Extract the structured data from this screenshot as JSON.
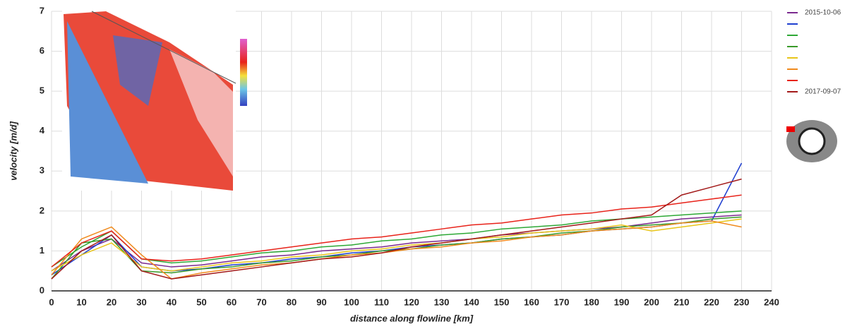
{
  "chart_data": {
    "type": "line",
    "x_label": "distance along flowline [km]",
    "y_label": "velocity [m/d]",
    "x": [
      0,
      10,
      20,
      30,
      40,
      50,
      60,
      70,
      80,
      90,
      100,
      110,
      120,
      130,
      140,
      150,
      160,
      170,
      180,
      190,
      200,
      210,
      220,
      230
    ],
    "series": [
      {
        "name": "2015-10-06",
        "color": "#7b2a8f",
        "values": [
          0.5,
          1.0,
          1.3,
          0.7,
          0.6,
          0.65,
          0.75,
          0.85,
          0.9,
          1.0,
          1.05,
          1.1,
          1.2,
          1.25,
          1.3,
          1.4,
          1.45,
          1.5,
          1.55,
          1.6,
          1.7,
          1.8,
          1.85,
          1.9
        ]
      },
      {
        "name": null,
        "color": "#1f3fd0",
        "values": [
          0.4,
          0.9,
          1.4,
          0.6,
          0.5,
          0.55,
          0.65,
          0.7,
          0.8,
          0.85,
          0.95,
          1.0,
          1.1,
          1.15,
          1.2,
          1.3,
          1.35,
          1.4,
          1.5,
          1.55,
          1.6,
          1.7,
          1.75,
          3.2
        ]
      },
      {
        "name": null,
        "color": "#2ea836",
        "values": [
          0.6,
          1.1,
          1.5,
          0.8,
          0.7,
          0.75,
          0.85,
          0.95,
          1.0,
          1.1,
          1.15,
          1.25,
          1.3,
          1.4,
          1.45,
          1.55,
          1.6,
          1.65,
          1.75,
          1.8,
          1.85,
          1.9,
          1.95,
          2.0
        ]
      },
      {
        "name": null,
        "color": "#3a9a2a",
        "values": [
          0.3,
          1.2,
          1.3,
          0.5,
          0.45,
          0.55,
          0.6,
          0.7,
          0.75,
          0.85,
          0.9,
          1.0,
          1.05,
          1.15,
          1.2,
          1.3,
          1.35,
          1.45,
          1.5,
          1.6,
          1.65,
          1.7,
          1.8,
          1.85
        ]
      },
      {
        "name": null,
        "color": "#e8c51a",
        "values": [
          0.5,
          0.9,
          1.2,
          0.6,
          0.5,
          0.6,
          0.7,
          0.75,
          0.85,
          0.9,
          1.0,
          1.05,
          1.15,
          1.2,
          1.3,
          1.35,
          1.45,
          1.5,
          1.55,
          1.65,
          1.5,
          1.6,
          1.7,
          1.8
        ]
      },
      {
        "name": null,
        "color": "#f08a1c",
        "values": [
          0.4,
          1.3,
          1.6,
          0.9,
          0.3,
          0.45,
          0.55,
          0.65,
          0.7,
          0.8,
          0.9,
          0.95,
          1.05,
          1.1,
          1.2,
          1.25,
          1.35,
          1.4,
          1.5,
          1.55,
          1.6,
          1.7,
          1.75,
          1.6
        ]
      },
      {
        "name": null,
        "color": "#e8231a",
        "values": [
          0.6,
          1.2,
          1.5,
          0.8,
          0.75,
          0.8,
          0.9,
          1.0,
          1.1,
          1.2,
          1.3,
          1.35,
          1.45,
          1.55,
          1.65,
          1.7,
          1.8,
          1.9,
          1.95,
          2.05,
          2.1,
          2.2,
          2.3,
          2.4
        ]
      },
      {
        "name": "2017-09-07",
        "color": "#a31a1a",
        "values": [
          0.3,
          1.0,
          1.4,
          0.5,
          0.3,
          0.4,
          0.5,
          0.6,
          0.7,
          0.8,
          0.85,
          0.95,
          1.1,
          1.2,
          1.3,
          1.4,
          1.5,
          1.6,
          1.7,
          1.8,
          1.9,
          2.4,
          2.6,
          2.8
        ]
      }
    ],
    "xlim": [
      0,
      240
    ],
    "ylim": [
      0,
      7
    ],
    "xticks": [
      0,
      10,
      20,
      30,
      40,
      50,
      60,
      70,
      80,
      90,
      100,
      110,
      120,
      130,
      140,
      150,
      160,
      170,
      180,
      190,
      200,
      210,
      220,
      230,
      240
    ],
    "yticks": [
      0,
      1,
      2,
      3,
      4,
      5,
      6,
      7
    ],
    "grid": true
  }
}
